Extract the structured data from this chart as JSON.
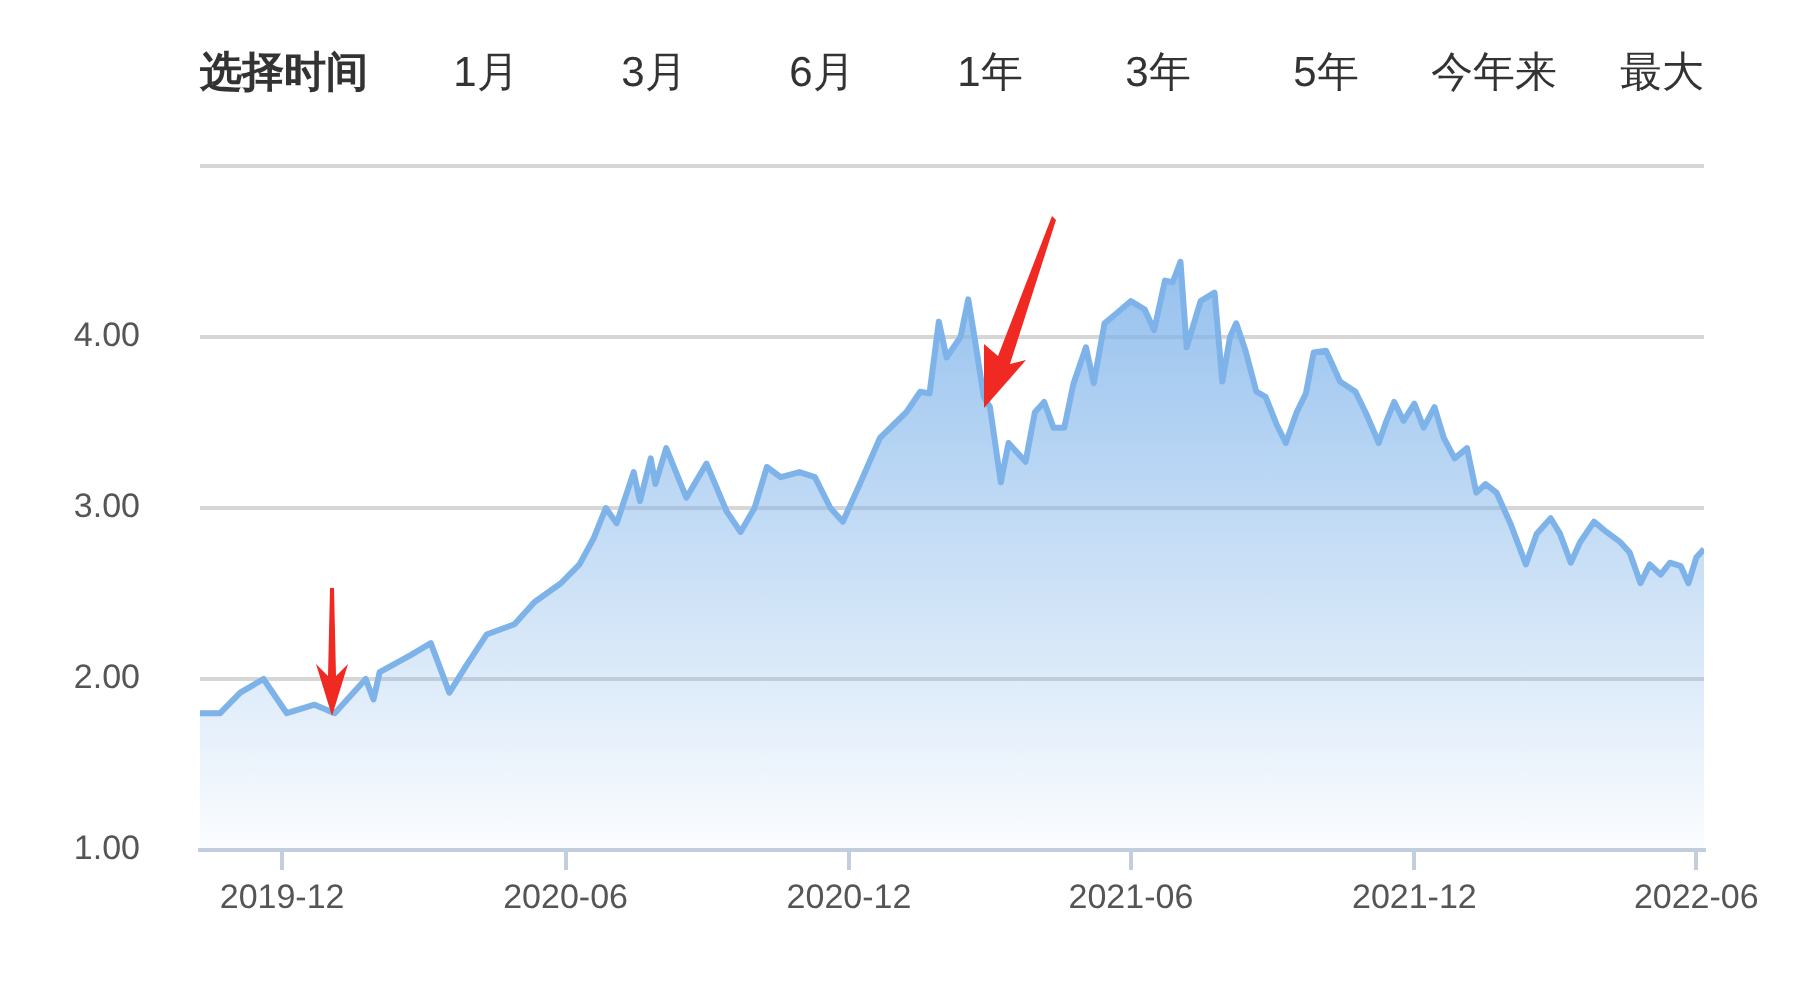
{
  "chart_data": {
    "type": "area",
    "title": "选择时间",
    "annotations": [
      "1月",
      "3月",
      "6月",
      "1年",
      "3年",
      "5年",
      "今年来",
      "最大"
    ],
    "x": [
      "2019-10-09",
      "2019-10-22",
      "2019-11-04",
      "2019-11-19",
      "2019-12-04",
      "2019-12-22",
      "2020-01-04",
      "2020-01-24",
      "2020-01-29",
      "2020-02-02",
      "2020-02-22",
      "2020-03-06",
      "2020-03-18",
      "2020-03-29",
      "2020-04-11",
      "2020-04-29",
      "2020-05-12",
      "2020-05-29",
      "2020-06-10",
      "2020-06-19",
      "2020-06-27",
      "2020-07-04",
      "2020-07-15",
      "2020-07-19",
      "2020-07-26",
      "2020-07-29",
      "2020-08-05",
      "2020-08-18",
      "2020-08-31",
      "2020-09-13",
      "2020-09-22",
      "2020-10-01",
      "2020-10-09",
      "2020-10-18",
      "2020-10-30",
      "2020-11-09",
      "2020-11-19",
      "2020-11-27",
      "2020-12-08",
      "2020-12-21",
      "2021-01-07",
      "2021-01-16",
      "2021-01-22",
      "2021-01-28",
      "2021-02-02",
      "2021-02-11",
      "2021-02-16",
      "2021-02-20",
      "2021-02-26",
      "2021-03-02",
      "2021-03-09",
      "2021-03-14",
      "2021-03-19",
      "2021-03-25",
      "2021-03-31",
      "2021-04-06",
      "2021-04-12",
      "2021-04-19",
      "2021-04-25",
      "2021-05-03",
      "2021-05-08",
      "2021-05-15",
      "2021-05-23",
      "2021-06-01",
      "2021-06-10",
      "2021-06-16",
      "2021-06-23",
      "2021-06-28",
      "2021-07-03",
      "2021-07-07",
      "2021-07-16",
      "2021-07-25",
      "2021-07-30",
      "2021-08-04",
      "2021-08-08",
      "2021-08-14",
      "2021-08-21",
      "2021-08-27",
      "2021-09-03",
      "2021-09-09",
      "2021-09-16",
      "2021-09-22",
      "2021-09-27",
      "2021-10-05",
      "2021-10-14",
      "2021-10-24",
      "2021-10-31",
      "2021-11-08",
      "2021-11-13",
      "2021-11-18",
      "2021-11-24",
      "2021-12-01",
      "2021-12-07",
      "2021-12-14",
      "2021-12-20",
      "2021-12-27",
      "2022-01-04",
      "2022-01-10",
      "2022-01-16",
      "2022-01-23",
      "2022-02-01",
      "2022-02-11",
      "2022-02-18",
      "2022-02-27",
      "2022-03-05",
      "2022-03-12",
      "2022-03-18",
      "2022-03-27",
      "2022-04-04",
      "2022-04-13",
      "2022-04-19",
      "2022-04-26",
      "2022-05-02",
      "2022-05-09",
      "2022-05-15",
      "2022-05-22",
      "2022-05-27",
      "2022-06-01",
      "2022-06-06"
    ],
    "series": [
      {
        "color": "#7eb3ea",
        "values": [
          1.8,
          1.8,
          1.92,
          2.0,
          1.8,
          1.85,
          1.8,
          2.0,
          1.88,
          2.04,
          2.14,
          2.21,
          1.92,
          2.08,
          2.26,
          2.32,
          2.45,
          2.56,
          2.67,
          2.82,
          3.0,
          2.91,
          3.21,
          3.04,
          3.29,
          3.14,
          3.35,
          3.06,
          3.26,
          2.98,
          2.86,
          3.0,
          3.24,
          3.18,
          3.21,
          3.18,
          3.0,
          2.92,
          3.14,
          3.41,
          3.56,
          3.68,
          3.67,
          4.09,
          3.88,
          4.0,
          4.22,
          4.0,
          3.65,
          3.59,
          3.15,
          3.38,
          3.33,
          3.27,
          3.56,
          3.62,
          3.47,
          3.47,
          3.73,
          3.94,
          3.73,
          4.08,
          4.14,
          4.21,
          4.16,
          4.04,
          4.33,
          4.32,
          4.44,
          3.94,
          4.21,
          4.26,
          3.74,
          4.0,
          4.08,
          3.92,
          3.68,
          3.65,
          3.49,
          3.38,
          3.56,
          3.67,
          3.91,
          3.92,
          3.74,
          3.68,
          3.55,
          3.38,
          3.51,
          3.62,
          3.51,
          3.61,
          3.47,
          3.59,
          3.41,
          3.29,
          3.35,
          3.09,
          3.14,
          3.09,
          2.91,
          2.67,
          2.85,
          2.94,
          2.85,
          2.68,
          2.8,
          2.92,
          2.86,
          2.8,
          2.74,
          2.56,
          2.67,
          2.61,
          2.68,
          2.66,
          2.56,
          2.71,
          2.76
        ]
      }
    ],
    "xlim": [
      "2019-10-09",
      "2022-06-06"
    ],
    "xticks": [
      "2019-12",
      "2020-06",
      "2020-12",
      "2021-06",
      "2021-12",
      "2022-06"
    ],
    "ylim": [
      1,
      5
    ],
    "yticks": [
      {
        "value": 1,
        "label": "1.00"
      },
      {
        "value": 2,
        "label": "2.00"
      },
      {
        "value": 3,
        "label": "3.00"
      },
      {
        "value": 4,
        "label": "4.00"
      },
      {
        "value": 5,
        "label": null
      }
    ],
    "grid": "y",
    "legend": false,
    "marker": "none",
    "line_style": "solid"
  }
}
